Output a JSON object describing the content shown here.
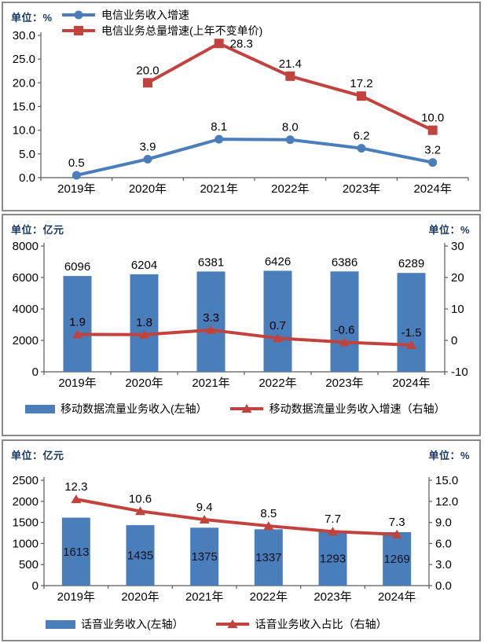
{
  "colors": {
    "blue": "#4A7EBB",
    "red": "#C2423E",
    "unit_text": "#17375E",
    "axis": "#5A5A5A",
    "data_label": "#000000",
    "bar_label_inside": "#101020"
  },
  "chart_data": [
    {
      "type": "line",
      "unit_left": "单位：%",
      "categories": [
        "2019年",
        "2020年",
        "2021年",
        "2022年",
        "2023年",
        "2024年"
      ],
      "y_left": {
        "min": 0,
        "max": 30,
        "step": 5,
        "format": "1dp"
      },
      "series": [
        {
          "name": "电信业务收入增速",
          "marker": "circle",
          "color": "#4A7EBB",
          "values": [
            0.5,
            3.9,
            8.1,
            8.0,
            6.2,
            3.2
          ]
        },
        {
          "name": "电信业务总量增速(上年不变单价)",
          "marker": "square",
          "color": "#C2423E",
          "values": [
            null,
            20.0,
            28.3,
            21.4,
            17.2,
            10.0
          ]
        }
      ],
      "legend_labels": [
        "电信业务收入增速",
        "电信业务总量增速(上年不变单价)"
      ]
    },
    {
      "type": "bar-line",
      "unit_left": "单位：亿元",
      "unit_right": "单位：%",
      "categories": [
        "2019年",
        "2020年",
        "2021年",
        "2022年",
        "2023年",
        "2024年"
      ],
      "y_left": {
        "min": 0,
        "max": 8000,
        "step": 2000,
        "format": "int"
      },
      "y_right": {
        "min": -10,
        "max": 30,
        "step": 10,
        "format": "int"
      },
      "bars": {
        "name": "移动数据流量业务收入(左轴）",
        "color": "#4A7EBB",
        "label_position": "above",
        "values": [
          6096,
          6204,
          6381,
          6426,
          6386,
          6289
        ]
      },
      "line": {
        "name": "移动数据流量业务收入增速（右轴）",
        "color": "#C2423E",
        "marker": "triangle",
        "values": [
          1.9,
          1.8,
          3.3,
          0.7,
          -0.6,
          -1.5
        ]
      }
    },
    {
      "type": "bar-line",
      "unit_left": "单位：亿元",
      "unit_right": "单位：%",
      "categories": [
        "2019年",
        "2020年",
        "2021年",
        "2022年",
        "2023年",
        "2024年"
      ],
      "y_left": {
        "min": 0,
        "max": 2500,
        "step": 500,
        "format": "int"
      },
      "y_right": {
        "min": 0,
        "max": 15,
        "step": 3,
        "format": "1dp"
      },
      "bars": {
        "name": "话音业务收入(左轴）",
        "color": "#4A7EBB",
        "label_position": "inside",
        "values": [
          1613,
          1435,
          1375,
          1337,
          1293,
          1269
        ]
      },
      "line": {
        "name": "话音业务收入占比（右轴）",
        "color": "#C2423E",
        "marker": "triangle",
        "values": [
          12.3,
          10.6,
          9.4,
          8.5,
          7.7,
          7.3
        ]
      }
    }
  ]
}
